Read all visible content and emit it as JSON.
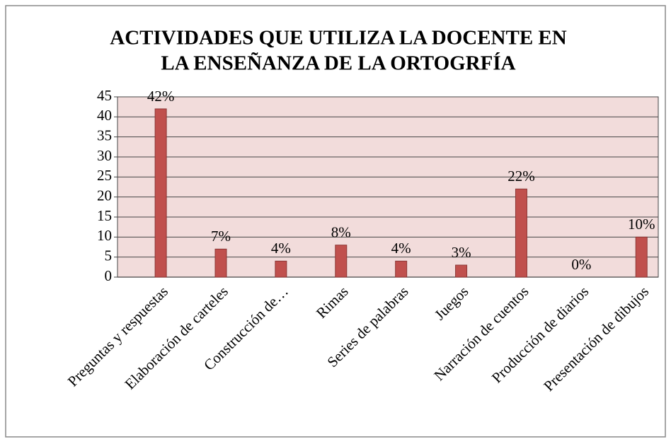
{
  "chart_data": {
    "type": "bar",
    "title": [
      "ACTIVIDADES QUE  UTILIZA LA DOCENTE EN",
      "LA ENSEÑANZA DE LA ORTOGRFÍA"
    ],
    "categories": [
      "Preguntas y respuestas",
      "Elaboración de carteles",
      "Construcción de…",
      "Rimas",
      "Series de palabras",
      "Juegos",
      "Narración de cuentos",
      "Producción de diarios",
      "Presentación de dibujos"
    ],
    "values": [
      42,
      7,
      4,
      8,
      4,
      3,
      22,
      0,
      10
    ],
    "value_labels": [
      "42%",
      "7%",
      "4%",
      "8%",
      "4%",
      "3%",
      "22%",
      "0%",
      "10%"
    ],
    "color": "#c0504d",
    "ylim": [
      0,
      45
    ],
    "yticks": [
      0,
      5,
      10,
      15,
      20,
      25,
      30,
      35,
      40,
      45
    ],
    "grid": true
  }
}
